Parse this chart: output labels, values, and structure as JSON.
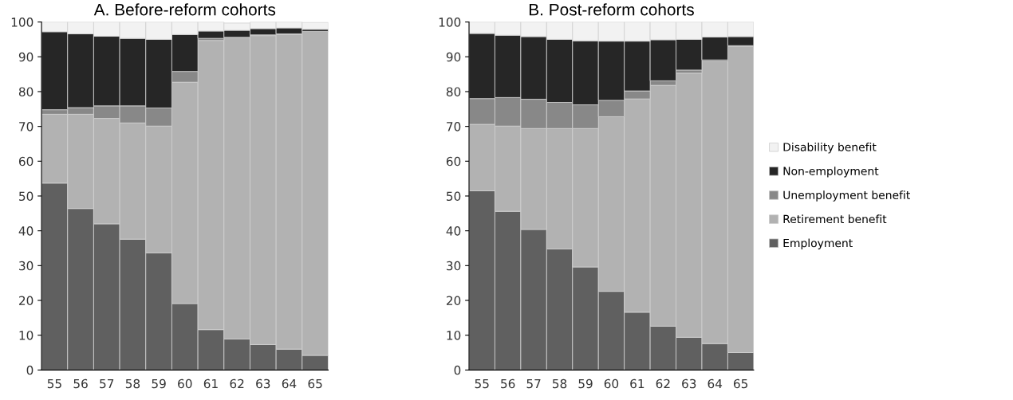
{
  "chart_data": [
    {
      "type": "bar",
      "stacked": true,
      "title": "A. Before-reform cohorts",
      "categories": [
        "55",
        "56",
        "57",
        "58",
        "59",
        "60",
        "61",
        "62",
        "63",
        "64",
        "65"
      ],
      "ylim": [
        0,
        100
      ],
      "yticks": [
        0,
        10,
        20,
        30,
        40,
        50,
        60,
        70,
        80,
        90,
        100
      ],
      "grid": false,
      "series": [
        {
          "color": "#606060",
          "values": [
            53.7,
            46.4,
            42.0,
            37.6,
            33.7,
            19.1,
            11.6,
            8.9,
            7.3,
            6.0,
            4.2
          ]
        },
        {
          "color": "#b2b2b2",
          "values": [
            19.8,
            27.1,
            30.3,
            33.4,
            36.4,
            63.6,
            83.1,
            86.7,
            88.8,
            90.4,
            93.1
          ]
        },
        {
          "color": "#888888",
          "values": [
            1.3,
            1.9,
            3.6,
            4.9,
            5.2,
            3.1,
            0.6,
            null,
            0.2,
            0.2,
            null
          ]
        },
        {
          "color": "#262626",
          "values": [
            22.4,
            21.2,
            20.0,
            19.4,
            19.7,
            10.6,
            2.1,
            2.0,
            1.8,
            1.7,
            0.6
          ]
        },
        {
          "color": "#f2f2f2",
          "values": [
            2.8,
            3.4,
            4.1,
            4.7,
            5.0,
            3.6,
            2.6,
            2.1,
            1.9,
            1.7,
            2.0
          ]
        }
      ]
    },
    {
      "type": "bar",
      "stacked": true,
      "title": "B. Post-reform cohorts",
      "categories": [
        "55",
        "56",
        "57",
        "58",
        "59",
        "60",
        "61",
        "62",
        "63",
        "64",
        "65"
      ],
      "ylim": [
        0,
        100
      ],
      "yticks": [
        0,
        10,
        20,
        30,
        40,
        50,
        60,
        70,
        80,
        90,
        100
      ],
      "grid": false,
      "legend": "right",
      "series": [
        {
          "name": "Employment",
          "color": "#606060",
          "values": [
            51.5,
            45.6,
            40.4,
            34.8,
            29.6,
            22.6,
            16.6,
            12.6,
            9.4,
            7.6,
            5.0
          ]
        },
        {
          "name": "Retirement benefit",
          "color": "#b2b2b2",
          "values": [
            19.1,
            24.5,
            29.0,
            34.6,
            39.8,
            50.2,
            61.3,
            69.2,
            75.9,
            81.0,
            88.0
          ]
        },
        {
          "name": "Unemployment benefit",
          "color": "#888888",
          "values": [
            7.4,
            8.2,
            8.4,
            7.5,
            6.8,
            4.7,
            2.3,
            1.3,
            0.9,
            0.5,
            0.2
          ]
        },
        {
          "name": "Non-employment",
          "color": "#262626",
          "values": [
            18.7,
            17.9,
            18.0,
            18.1,
            18.4,
            17.0,
            14.3,
            11.8,
            8.8,
            6.6,
            2.6
          ]
        },
        {
          "name": "Disability benefit",
          "color": "#f2f2f2",
          "values": [
            3.3,
            3.8,
            4.2,
            5.0,
            5.4,
            5.5,
            5.5,
            5.1,
            5.0,
            4.3,
            4.2
          ]
        }
      ]
    }
  ]
}
